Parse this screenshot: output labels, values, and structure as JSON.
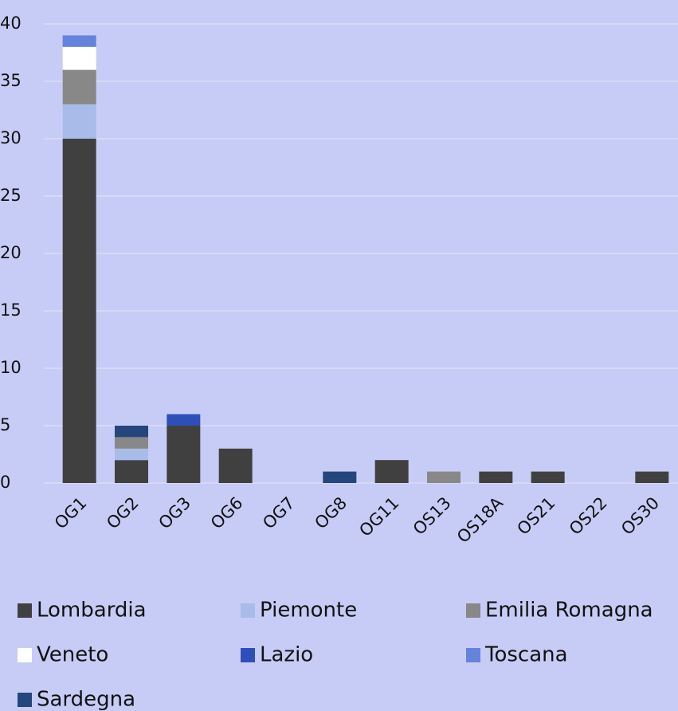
{
  "chart_data": {
    "type": "stacked_bar",
    "categories": [
      "OG1",
      "OG2",
      "OG3",
      "OG6",
      "OG7",
      "OG8",
      "OG11",
      "OS13",
      "OS18A",
      "OS21",
      "OS22",
      "OS30"
    ],
    "series": [
      {
        "name": "Lombardia",
        "color": "#404040",
        "values": [
          30,
          2,
          5,
          3,
          0,
          0,
          2,
          0,
          1,
          1,
          0,
          1
        ]
      },
      {
        "name": "Piemonte",
        "color": "#a9bbe8",
        "values": [
          3,
          1,
          0,
          0,
          0,
          0,
          0,
          0,
          0,
          0,
          0,
          0
        ]
      },
      {
        "name": "Emilia Romagna",
        "color": "#888888",
        "values": [
          3,
          1,
          0,
          0,
          0,
          0,
          0,
          1,
          0,
          0,
          0,
          0
        ]
      },
      {
        "name": "Veneto",
        "color": "#ffffff",
        "values": [
          2,
          0,
          0,
          0,
          0,
          0,
          0,
          0,
          0,
          0,
          0,
          0
        ]
      },
      {
        "name": "Lazio",
        "color": "#2f4fb8",
        "values": [
          0,
          0,
          1,
          0,
          0,
          0,
          0,
          0,
          0,
          0,
          0,
          0
        ]
      },
      {
        "name": "Toscana",
        "color": "#6383dc",
        "values": [
          1,
          0,
          0,
          0,
          0,
          0,
          0,
          0,
          0,
          0,
          0,
          0
        ]
      },
      {
        "name": "Sardegna",
        "color": "#25467c",
        "values": [
          0,
          1,
          0,
          0,
          0,
          1,
          0,
          0,
          0,
          0,
          0,
          0
        ]
      }
    ],
    "ylim": [
      0,
      40
    ],
    "yticks": [
      0,
      5,
      10,
      15,
      20,
      25,
      30,
      35,
      40
    ],
    "grid": true,
    "legend": "bottom"
  }
}
